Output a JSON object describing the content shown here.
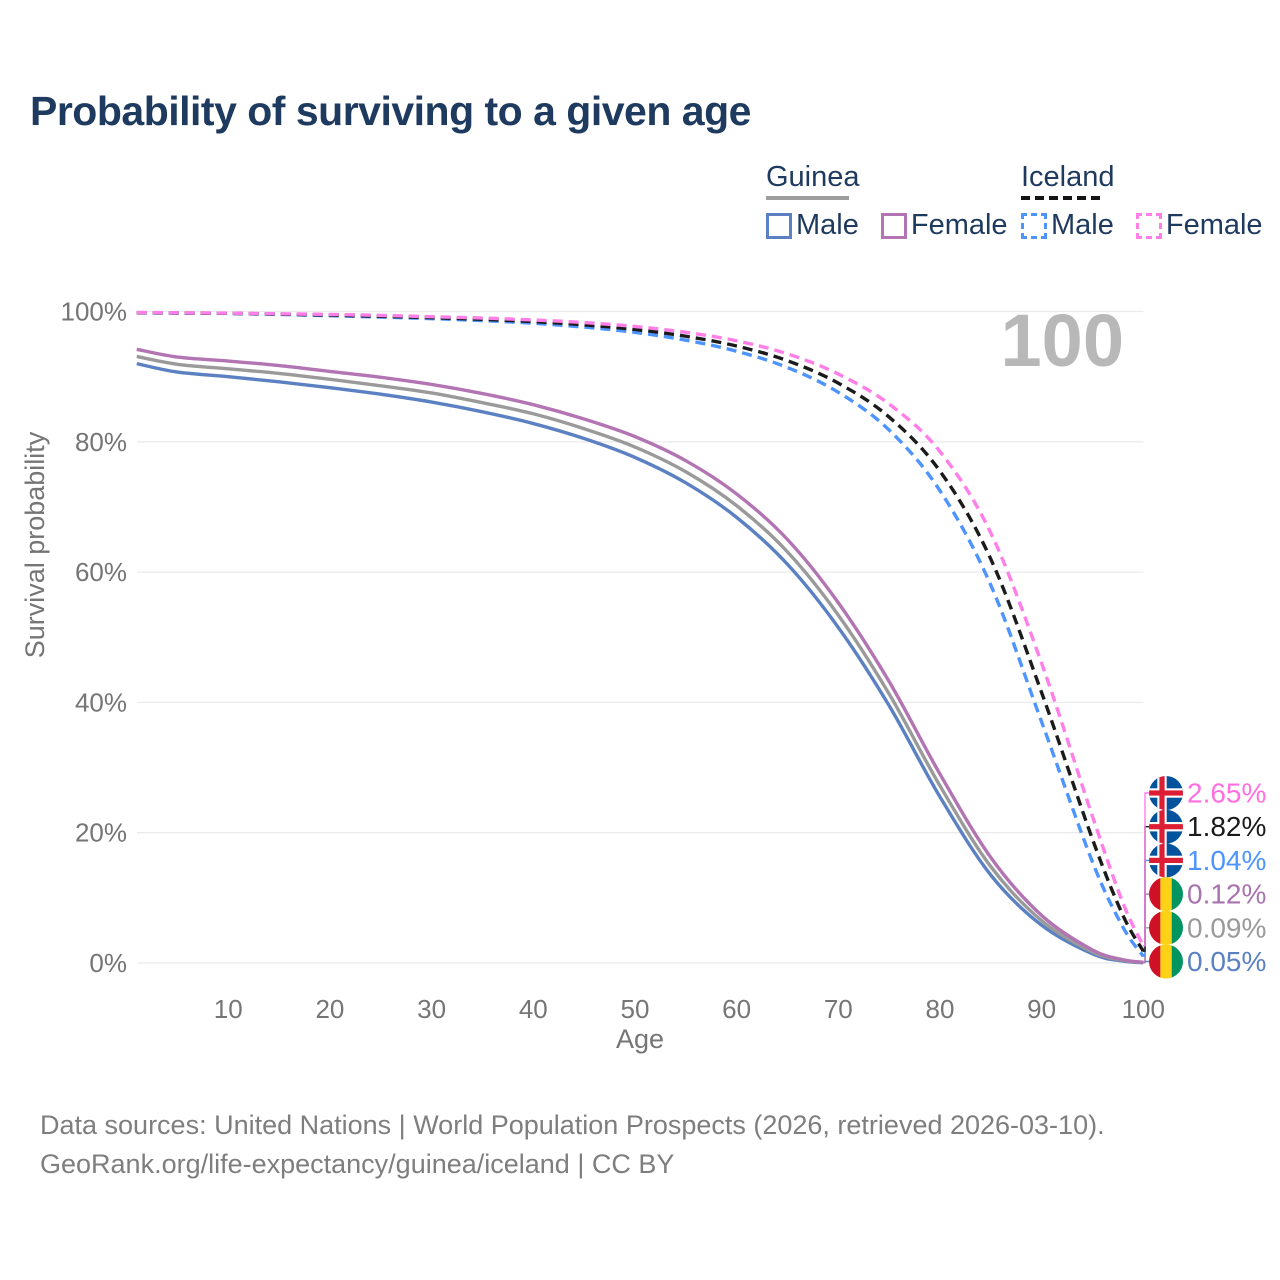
{
  "title": "Probability of surviving to a given age",
  "watermark": "100",
  "legend": {
    "guinea": {
      "title": "Guinea",
      "male_label": "Male",
      "female_label": "Female"
    },
    "iceland": {
      "title": "Iceland",
      "male_label": "Male",
      "female_label": "Female"
    }
  },
  "footer": {
    "line1": "Data sources: United Nations | World Population Prospects (2026, retrieved 2026-03-10).",
    "line2": "GeoRank.org/life-expectancy/guinea/iceland | CC BY"
  },
  "colors": {
    "title_text": "#1e3a5f",
    "axis_text": "#757575",
    "gridline": "#ebebeb",
    "watermark": "#b8b8b8",
    "footer_text": "#7e7e7e"
  },
  "chart_data": {
    "type": "line",
    "title": "Probability of surviving to a given age",
    "xlabel": "Age",
    "ylabel": "Survival probability",
    "xlim": [
      1,
      100
    ],
    "ylim": [
      0,
      100
    ],
    "grid": true,
    "x_ticks": [
      10,
      20,
      30,
      40,
      50,
      60,
      70,
      80,
      90,
      100
    ],
    "y_ticks": [
      0,
      20,
      40,
      60,
      80,
      100
    ],
    "y_tick_suffix": "%",
    "x": [
      1,
      5,
      10,
      15,
      20,
      25,
      30,
      35,
      40,
      45,
      50,
      55,
      60,
      65,
      70,
      75,
      80,
      85,
      90,
      95,
      98,
      100
    ],
    "series": [
      {
        "id": "guinea_male",
        "country": "Guinea",
        "group": "Male",
        "color": "#5b81c2",
        "label_color": "#5b81c2",
        "dashed": false,
        "flag": "guinea",
        "end_label": "0.05%",
        "values": [
          92.0,
          90.7,
          90.0,
          89.2,
          88.3,
          87.3,
          86.1,
          84.6,
          82.8,
          80.5,
          77.6,
          73.7,
          68.4,
          61.2,
          51.5,
          39.5,
          25.5,
          13.5,
          5.8,
          1.4,
          0.3,
          0.05
        ]
      },
      {
        "id": "guinea_all",
        "country": "Guinea",
        "group": "All",
        "color": "#9a9a9a",
        "label_color": "#9a9a9a",
        "dashed": false,
        "flag": "guinea",
        "end_label": "0.09%",
        "values": [
          93.1,
          91.9,
          91.2,
          90.5,
          89.6,
          88.6,
          87.5,
          86.0,
          84.3,
          82.0,
          79.2,
          75.4,
          70.2,
          63.1,
          53.4,
          41.3,
          27.2,
          14.8,
          6.5,
          1.7,
          0.4,
          0.09
        ]
      },
      {
        "id": "guinea_female",
        "country": "Guinea",
        "group": "Female",
        "color": "#b274b2",
        "label_color": "#a873ae",
        "dashed": false,
        "flag": "guinea",
        "end_label": "0.12%",
        "values": [
          94.2,
          93.0,
          92.4,
          91.7,
          90.8,
          89.9,
          88.8,
          87.4,
          85.7,
          83.5,
          80.8,
          77.1,
          72.0,
          65.0,
          55.3,
          43.2,
          29.0,
          16.2,
          7.3,
          2.0,
          0.5,
          0.12
        ]
      },
      {
        "id": "iceland_male",
        "country": "Iceland",
        "group": "Male",
        "color": "#4d94ff",
        "label_color": "#4d94ff",
        "dashed": true,
        "flag": "iceland",
        "end_label": "1.04%",
        "values": [
          99.8,
          99.75,
          99.7,
          99.55,
          99.35,
          99.15,
          98.9,
          98.6,
          98.2,
          97.6,
          96.8,
          95.6,
          93.9,
          91.4,
          87.6,
          81.8,
          72.5,
          58.0,
          37.0,
          15.5,
          5.5,
          1.04
        ]
      },
      {
        "id": "iceland_all",
        "country": "Iceland",
        "group": "All",
        "color": "#1b1b1b",
        "label_color": "#1b1b1b",
        "dashed": true,
        "flag": "iceland",
        "end_label": "1.82%",
        "values": [
          99.82,
          99.77,
          99.72,
          99.6,
          99.45,
          99.27,
          99.05,
          98.8,
          98.45,
          97.95,
          97.25,
          96.2,
          94.7,
          92.45,
          89.0,
          83.8,
          75.5,
          62.0,
          41.5,
          19.0,
          7.3,
          1.82
        ]
      },
      {
        "id": "iceland_female",
        "country": "Iceland",
        "group": "Female",
        "color": "#ff7ee7",
        "label_color": "#ff6fdf",
        "dashed": true,
        "flag": "iceland",
        "end_label": "2.65%",
        "values": [
          99.85,
          99.8,
          99.75,
          99.65,
          99.55,
          99.4,
          99.2,
          99.0,
          98.7,
          98.3,
          97.7,
          96.8,
          95.5,
          93.5,
          90.4,
          85.8,
          78.5,
          66.0,
          46.0,
          22.5,
          9.2,
          2.65
        ]
      }
    ],
    "legend_position": "top-right",
    "flag_colors": {
      "guinea": {
        "red": "#CE1126",
        "yellow": "#FCD116",
        "green": "#009460"
      },
      "iceland": {
        "blue": "#02529C",
        "white": "#ffffff",
        "red": "#DC1E35"
      }
    }
  }
}
